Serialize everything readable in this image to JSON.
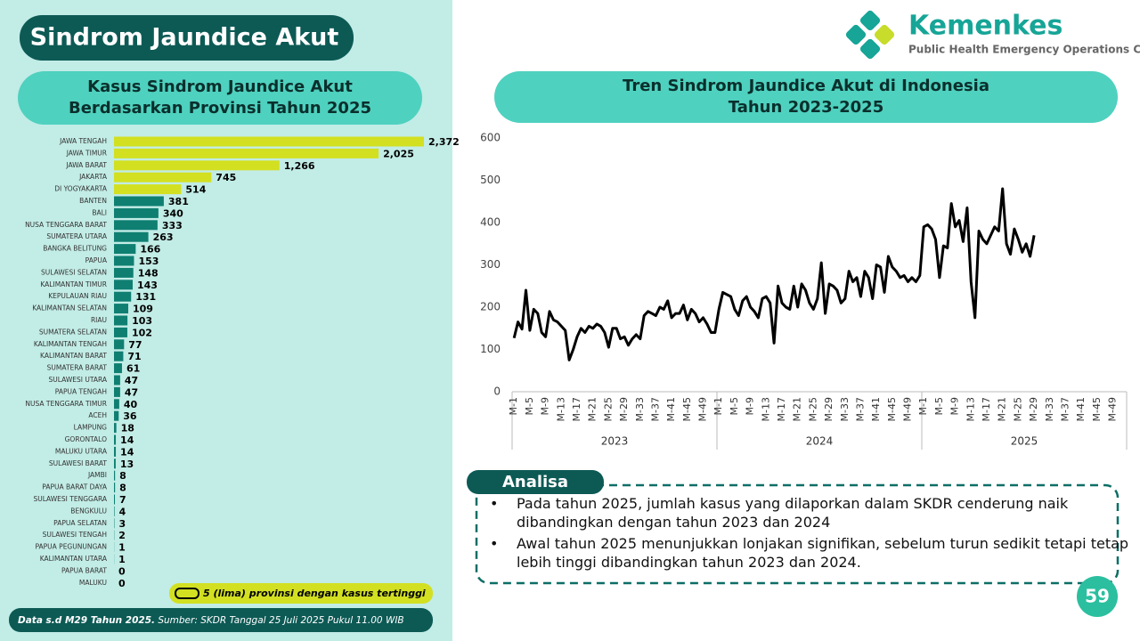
{
  "header": {
    "title": "Sindrom Jaundice Akut",
    "logo_name": "Kemenkes",
    "logo_subtitle": "Public Health Emergency Operations Center"
  },
  "chart_data": [
    {
      "type": "bar",
      "orientation": "horizontal",
      "title": "Kasus Sindrom Jaundice Akut\nBerdasarkan Provinsi Tahun 2025",
      "categories": [
        "JAWA TENGAH",
        "JAWA TIMUR",
        "JAWA BARAT",
        "JAKARTA",
        "DI YOGYAKARTA",
        "BANTEN",
        "BALI",
        "NUSA TENGGARA BARAT",
        "SUMATERA UTARA",
        "BANGKA BELITUNG",
        "PAPUA",
        "SULAWESI SELATAN",
        "KALIMANTAN TIMUR",
        "KEPULAUAN RIAU",
        "KALIMANTAN SELATAN",
        "RIAU",
        "SUMATERA SELATAN",
        "KALIMANTAN TENGAH",
        "KALIMANTAN BARAT",
        "SUMATERA BARAT",
        "SULAWESI UTARA",
        "PAPUA TENGAH",
        "NUSA TENGGARA TIMUR",
        "ACEH",
        "LAMPUNG",
        "GORONTALO",
        "MALUKU UTARA",
        "SULAWESI BARAT",
        "JAMBI",
        "PAPUA BARAT DAYA",
        "SULAWESI TENGGARA",
        "BENGKULU",
        "PAPUA SELATAN",
        "SULAWESI TENGAH",
        "PAPUA PEGUNUNGAN",
        "KALIMANTAN UTARA",
        "PAPUA BARAT",
        "MALUKU"
      ],
      "values": [
        2372,
        2025,
        1266,
        745,
        514,
        381,
        340,
        333,
        263,
        166,
        153,
        148,
        143,
        131,
        109,
        103,
        102,
        77,
        71,
        61,
        47,
        47,
        40,
        36,
        18,
        14,
        14,
        13,
        8,
        8,
        7,
        4,
        3,
        2,
        1,
        1,
        0,
        0
      ],
      "value_labels": [
        "2,372",
        "2,025",
        "1,266",
        "745",
        "514",
        "381",
        "340",
        "333",
        "263",
        "166",
        "153",
        "148",
        "143",
        "131",
        "109",
        "103",
        "102",
        "77",
        "71",
        "61",
        "47",
        "47",
        "40",
        "36",
        "18",
        "14",
        "14",
        "13",
        "8",
        "8",
        "7",
        "4",
        "3",
        "2",
        "1",
        "1",
        "0",
        "0"
      ],
      "colors": [
        "#d2e021",
        "#d2e021",
        "#d2e021",
        "#d2e021",
        "#d2e021",
        "#0f7f72",
        "#0f7f72",
        "#0f7f72",
        "#0f7f72",
        "#0f7f72",
        "#0f7f72",
        "#0f7f72",
        "#0f7f72",
        "#0f7f72",
        "#0f7f72",
        "#0f7f72",
        "#0f7f72",
        "#0f7f72",
        "#0f7f72",
        "#0f7f72",
        "#0f7f72",
        "#0f7f72",
        "#0f7f72",
        "#0f7f72",
        "#0f7f72",
        "#0f7f72",
        "#0f7f72",
        "#0f7f72",
        "#0f7f72",
        "#0f7f72",
        "#0f7f72",
        "#0f7f72",
        "#0f7f72",
        "#0f7f72",
        "#0f7f72",
        "#0f7f72",
        "#0f7f72",
        "#0f7f72"
      ],
      "legend": "5 (lima) provinsi dengan kasus tertinggi"
    },
    {
      "type": "line",
      "title": "Tren Sindrom Jaundice Akut di Indonesia\nTahun 2023-2025",
      "color": "#000000",
      "groups": [
        "2023",
        "2024",
        "2025"
      ],
      "categories": [
        "M-1",
        null,
        null,
        null,
        "M-5",
        null,
        null,
        null,
        "M-9",
        null,
        null,
        null,
        "M-13",
        null,
        null,
        null,
        "M-17",
        null,
        null,
        null,
        "M-21",
        null,
        null,
        null,
        "M-25",
        null,
        null,
        null,
        "M-29",
        null,
        null,
        null,
        "M-33",
        null,
        null,
        null,
        "M-37",
        null,
        null,
        null,
        "M-41",
        null,
        null,
        null,
        "M-45",
        null,
        null,
        null,
        "M-49",
        null,
        null,
        null,
        "M-1",
        null,
        null,
        null,
        "M-5",
        null,
        null,
        null,
        "M-9",
        null,
        null,
        null,
        "M-13",
        null,
        null,
        null,
        "M-17",
        null,
        null,
        null,
        "M-21",
        null,
        null,
        null,
        "M-25",
        null,
        null,
        null,
        "M-29",
        null,
        null,
        null,
        "M-33",
        null,
        null,
        null,
        "M-37",
        null,
        null,
        null,
        "M-41",
        null,
        null,
        null,
        "M-45",
        null,
        null,
        null,
        "M-49",
        null,
        null,
        null,
        "M-1",
        null,
        null,
        null,
        "M-5",
        null,
        null,
        null,
        "M-9",
        null,
        null,
        null,
        "M-13",
        null,
        null,
        null,
        "M-17",
        null,
        null,
        null,
        "M-21",
        null,
        null,
        null,
        "M-25",
        null,
        null,
        null,
        "M-29",
        null,
        null,
        null,
        "M-33",
        null,
        null,
        null,
        "M-37",
        null,
        null,
        null,
        "M-41",
        null,
        null,
        null,
        "M-45",
        null,
        null,
        null,
        "M-49",
        null,
        null,
        null
      ],
      "values": [
        127,
        165,
        148,
        240,
        145,
        195,
        185,
        140,
        130,
        190,
        170,
        165,
        155,
        145,
        75,
        100,
        130,
        150,
        140,
        155,
        150,
        160,
        155,
        140,
        105,
        150,
        150,
        125,
        130,
        110,
        125,
        135,
        125,
        180,
        190,
        185,
        180,
        200,
        195,
        215,
        175,
        185,
        185,
        205,
        170,
        195,
        185,
        165,
        175,
        160,
        140,
        140,
        195,
        235,
        230,
        225,
        195,
        180,
        215,
        225,
        200,
        190,
        175,
        220,
        225,
        210,
        115,
        250,
        210,
        200,
        195,
        250,
        200,
        255,
        240,
        210,
        195,
        220,
        305,
        185,
        255,
        250,
        240,
        210,
        220,
        285,
        260,
        270,
        225,
        285,
        270,
        220,
        300,
        295,
        235,
        320,
        295,
        285,
        270,
        275,
        260,
        270,
        260,
        275,
        390,
        395,
        385,
        360,
        270,
        345,
        340,
        445,
        390,
        405,
        355,
        435,
        260,
        175,
        380,
        360,
        350,
        370,
        390,
        380,
        480,
        350,
        325,
        385,
        360,
        330,
        350,
        320,
        370,
        null,
        null,
        null,
        null,
        null,
        null,
        null,
        null,
        null,
        null,
        null,
        null,
        null,
        null,
        null,
        null,
        null,
        null,
        null,
        null,
        null,
        null,
        null
      ],
      "ylim": [
        0,
        600
      ],
      "yticks": [
        0,
        100,
        200,
        300,
        400,
        500,
        600
      ]
    }
  ],
  "analysis": {
    "label": "Analisa",
    "bullets": [
      "Pada tahun 2025, jumlah kasus yang dilaporkan dalam SKDR cenderung naik dibandingkan dengan tahun 2023 dan 2024",
      "Awal tahun 2025 menunjukkan lonjakan signifikan, sebelum turun sedikit tetapi tetap lebih tinggi dibandingkan tahun 2023 dan 2024."
    ]
  },
  "footer": {
    "note": "Data s.d M29 Tahun 2025.",
    "source": "Sumber: SKDR Tanggal 25 Juli 2025 Pukul 11.00 WIB",
    "page": "59"
  }
}
